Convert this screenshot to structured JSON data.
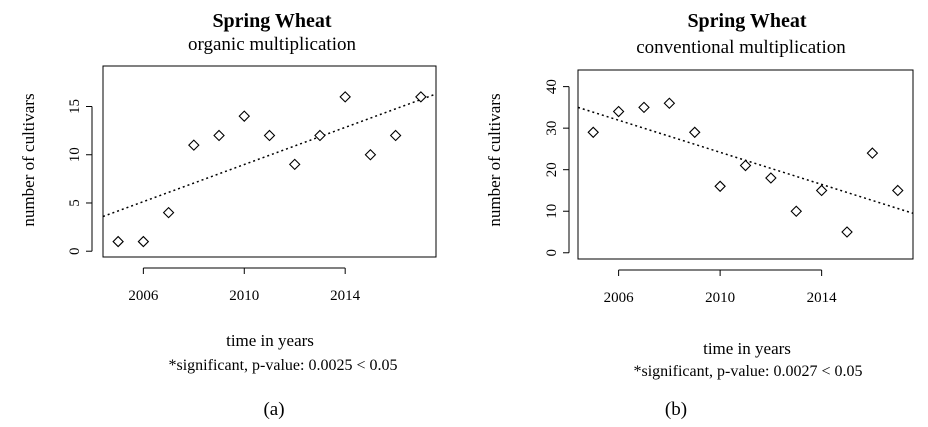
{
  "chart_data": [
    {
      "type": "scatter",
      "title": "Spring Wheat",
      "subtitle": "organic multiplication",
      "xlabel": "time in years",
      "ylabel": "number of cultivars",
      "note": "*significant, p-value:  0.0025  < 0.05",
      "panel_label": "(a)",
      "xlim": [
        2004.4,
        2017.6
      ],
      "ylim": [
        -0.6,
        19.2
      ],
      "x_ticks": [
        2006,
        2010,
        2014
      ],
      "x_tick_labels": [
        "2006",
        "2010",
        "2014"
      ],
      "y_ticks": [
        0,
        5,
        10,
        15
      ],
      "y_tick_labels": [
        "0",
        "5",
        "10",
        "15"
      ],
      "grid": false,
      "series": [
        {
          "x": [
            2005,
            2006,
            2007,
            2008,
            2009,
            2010,
            2011,
            2012,
            2013,
            2014,
            2015,
            2016,
            2017
          ],
          "y": [
            1,
            1,
            4,
            11,
            12,
            14,
            12,
            9,
            12,
            16,
            10,
            12,
            16
          ]
        }
      ],
      "trend_line": {
        "x": [
          2004.4,
          2017.6
        ],
        "y": [
          3.6,
          16.3
        ]
      }
    },
    {
      "type": "scatter",
      "title": "Spring Wheat",
      "subtitle": "conventional multiplication",
      "xlabel": "time in years",
      "ylabel": "number of cultivars",
      "note": "*significant, p-value:  0.0027  < 0.05",
      "panel_label": "(b)",
      "xlim": [
        2004.4,
        2017.6
      ],
      "ylim": [
        -1.5,
        44
      ],
      "x_ticks": [
        2006,
        2010,
        2014
      ],
      "x_tick_labels": [
        "2006",
        "2010",
        "2014"
      ],
      "y_ticks": [
        0,
        10,
        20,
        30,
        40
      ],
      "y_tick_labels": [
        "0",
        "10",
        "20",
        "30",
        "40"
      ],
      "grid": false,
      "series": [
        {
          "x": [
            2005,
            2006,
            2007,
            2008,
            2009,
            2010,
            2011,
            2012,
            2013,
            2014,
            2015,
            2016,
            2017
          ],
          "y": [
            29,
            34,
            35,
            36,
            29,
            16,
            21,
            18,
            10,
            15,
            5,
            24,
            15
          ]
        }
      ],
      "trend_line": {
        "x": [
          2004.4,
          2017.6
        ],
        "y": [
          35,
          9.5
        ]
      }
    }
  ]
}
